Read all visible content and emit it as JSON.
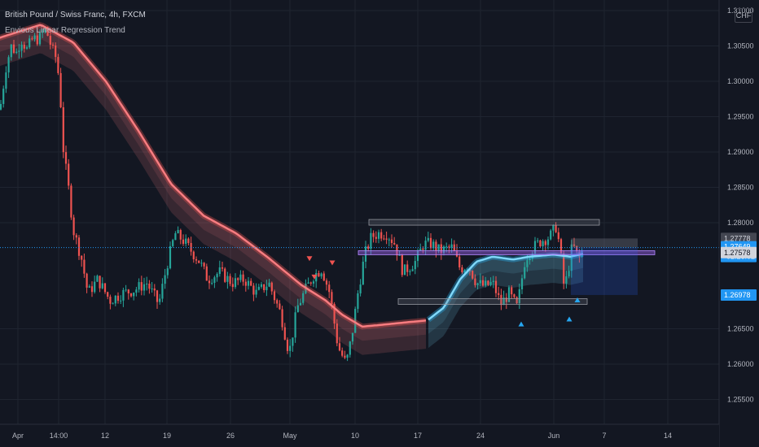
{
  "header": {
    "title": "British Pound / Swiss Franc, 4h, FXCM",
    "indicator": "Envious Linear Regression Trend",
    "currency": "CHF"
  },
  "chart_data": {
    "type": "candlestick",
    "symbol": "GBPCHF",
    "timeframe": "4h",
    "ylim": [
      1.2515,
      1.3115
    ],
    "y_ticks": [
      "1.31000",
      "1.30500",
      "1.30000",
      "1.29500",
      "1.29000",
      "1.28500",
      "1.28000",
      "1.26500",
      "1.26000",
      "1.25500"
    ],
    "x_ticks": [
      "Apr",
      "14:00",
      "12",
      "19",
      "26",
      "May",
      "10",
      "17",
      "24",
      "Jun",
      "7",
      "14"
    ],
    "price_labels": [
      {
        "value": 1.27778,
        "text": "1.27778",
        "style": "gray"
      },
      {
        "value": 1.27649,
        "text": "1.27649",
        "style": "blue"
      },
      {
        "value": 1.27578,
        "text": "1.27578",
        "style": "white"
      },
      {
        "value": 1.26978,
        "text": "1.26978",
        "style": "blue"
      }
    ],
    "countdown": "02:26:02",
    "current_price": 1.27649,
    "colors": {
      "up": "#26a69a",
      "down": "#ef5350",
      "regression_bear": "#f77c80",
      "regression_bull": "#7fd8fa",
      "zone": "#8e5cd9"
    }
  }
}
